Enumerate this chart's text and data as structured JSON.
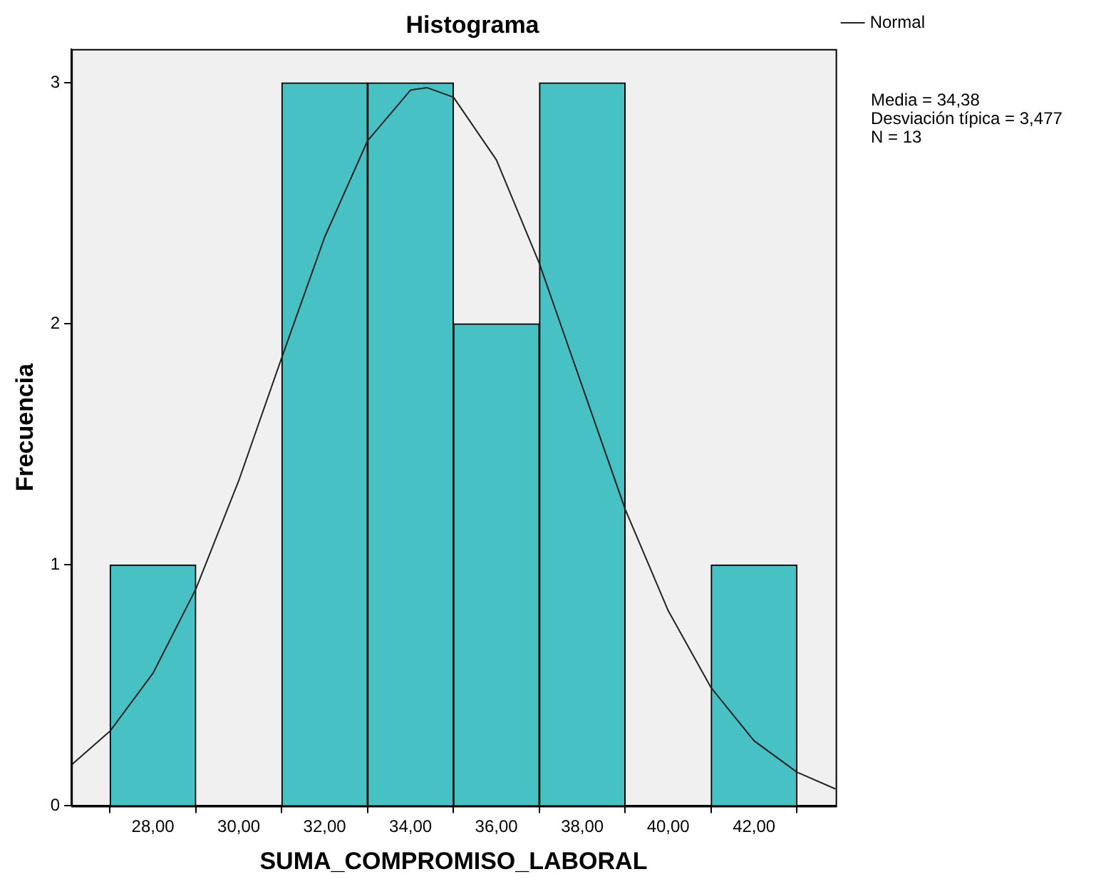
{
  "chart_data": {
    "type": "histogram",
    "title": "Histograma",
    "xlabel": "SUMA_COMPROMISO_LABORAL",
    "ylabel": "Frecuencia",
    "bins": [
      27,
      29,
      31,
      33,
      35,
      37,
      39,
      41,
      43
    ],
    "values": [
      1,
      0,
      3,
      3,
      2,
      3,
      0,
      1
    ],
    "color": "#48c1c4",
    "series": [
      {
        "name": "Normal",
        "type": "line",
        "color": "#222222",
        "x": [
          26.1,
          27,
          28,
          29,
          30,
          31,
          32,
          33,
          34,
          34.38,
          35,
          36,
          37,
          38,
          39,
          40,
          41,
          42,
          43,
          43.9
        ],
        "values": [
          0.17,
          0.31,
          0.55,
          0.9,
          1.35,
          1.86,
          2.36,
          2.76,
          2.97,
          2.98,
          2.94,
          2.68,
          2.25,
          1.74,
          1.23,
          0.81,
          0.49,
          0.27,
          0.14,
          0.07
        ]
      }
    ],
    "xlim": [
      26.1,
      43.9
    ],
    "xticks": [
      {
        "value": 28,
        "label": "28,00"
      },
      {
        "value": 30,
        "label": "30,00"
      },
      {
        "value": 32,
        "label": "32,00"
      },
      {
        "value": 34,
        "label": "34,00"
      },
      {
        "value": 36,
        "label": "36,00"
      },
      {
        "value": 38,
        "label": "38,00"
      },
      {
        "value": 40,
        "label": "40,00"
      },
      {
        "value": 42,
        "label": "42,00"
      }
    ],
    "ylim": [
      0,
      3.14
    ],
    "yticks": [
      0,
      1,
      2,
      3
    ],
    "grid": false,
    "legend": "top right",
    "marker": "none",
    "annotations": [
      "Media = 34,38",
      "Desviación típica = 3,477",
      "N = 13"
    ]
  }
}
